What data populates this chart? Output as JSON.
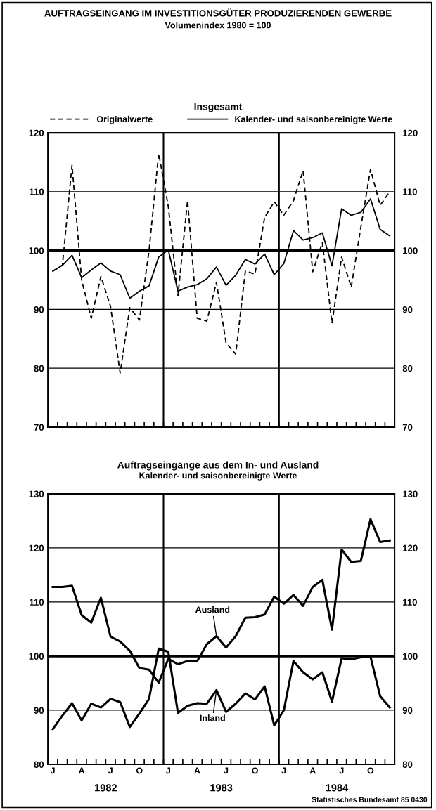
{
  "chart_data": [
    {
      "type": "line",
      "title": "AUFTRAGSEINGANG IM INVESTITIONSGÜTER PRODUZIERENDEN GEWERBE",
      "subtitle": "Volumenindex 1980 = 100",
      "annotations": [
        "Insgesamt"
      ],
      "categories": [
        null,
        null,
        null,
        null,
        null,
        null,
        null,
        null,
        null,
        null,
        null,
        null,
        null,
        null,
        null,
        null,
        null,
        null,
        null,
        null,
        null,
        null,
        null,
        null,
        null,
        null,
        null,
        null,
        null,
        null,
        null,
        null,
        null,
        null,
        null,
        null
      ],
      "series": [
        {
          "name": "Originalwerte",
          "color": "#000000",
          "line_style": "dashed",
          "values": [
            96.5,
            97.5,
            114.5,
            95.0,
            88.5,
            95.6,
            90.5,
            79.2,
            90.3,
            88.2,
            100.0,
            116.5,
            107.5,
            92.3,
            108.5,
            88.5,
            88.0,
            94.6,
            84.3,
            82.4,
            96.5,
            96.0,
            105.6,
            108.3,
            106.0,
            108.5,
            113.6,
            96.4,
            101.4,
            87.6,
            98.9,
            93.8,
            104.0,
            113.8,
            107.7,
            110.0
          ]
        },
        {
          "name": "Kalender- und saisonbereinigte Werte",
          "color": "#000000",
          "line_style": "solid",
          "values": [
            96.5,
            97.5,
            99.2,
            95.4,
            96.7,
            97.9,
            96.5,
            95.9,
            91.9,
            93.1,
            94.0,
            98.9,
            100.1,
            93.1,
            93.8,
            94.2,
            95.2,
            97.2,
            94.1,
            95.8,
            98.5,
            97.7,
            99.4,
            95.9,
            97.8,
            103.4,
            101.8,
            102.2,
            103.0,
            97.4,
            107.1,
            106.0,
            106.5,
            108.8,
            103.6,
            102.5
          ]
        }
      ],
      "ylim": [
        70,
        120
      ],
      "yticks": [
        70,
        80,
        90,
        100,
        110,
        120
      ],
      "y2lim": [
        70,
        120
      ],
      "y2ticks": [
        70,
        80,
        90,
        100,
        110,
        120
      ],
      "tick_labels": "y",
      "grid": "y",
      "legend": "top",
      "ref_lines": [
        {
          "axis": "y",
          "value": 100
        }
      ]
    },
    {
      "type": "line",
      "title": "Auftragseingänge aus dem In- und Ausland",
      "subtitle": "Kalender- und saisonbereinigte Werte",
      "annotations": [
        "1982",
        "1983",
        "1984",
        "Statistisches Bundesamt 85 0430"
      ],
      "categories": [
        "J",
        null,
        null,
        "A",
        null,
        null,
        "J",
        null,
        null,
        "O",
        null,
        null,
        "J",
        null,
        null,
        "A",
        null,
        null,
        "J",
        null,
        null,
        "O",
        null,
        null,
        "J",
        null,
        null,
        "A",
        null,
        null,
        "J",
        null,
        null,
        "O",
        null,
        null
      ],
      "series": [
        {
          "name": "Ausland",
          "color": "#000000",
          "values": [
            112.8,
            112.8,
            113.0,
            107.6,
            106.2,
            110.8,
            103.6,
            102.7,
            101.0,
            97.8,
            97.5,
            95.1,
            99.5,
            98.5,
            99.1,
            99.1,
            102.2,
            103.7,
            101.6,
            103.7,
            107.1,
            107.2,
            107.7,
            111.0,
            109.7,
            111.3,
            109.3,
            112.8,
            114.1,
            104.9,
            119.7,
            117.4,
            117.6,
            125.3,
            121.1,
            121.4
          ]
        },
        {
          "name": "Inland",
          "color": "#000000",
          "values": [
            86.5,
            89.0,
            91.3,
            88.1,
            91.2,
            90.5,
            92.1,
            91.5,
            86.9,
            89.4,
            92.1,
            101.4,
            100.8,
            89.5,
            90.8,
            91.3,
            91.2,
            93.7,
            89.7,
            91.2,
            93.1,
            92.0,
            94.4,
            87.2,
            90.0,
            99.1,
            97.0,
            95.7,
            97.0,
            91.6,
            99.6,
            99.4,
            99.8,
            99.9,
            92.6,
            90.5
          ]
        }
      ],
      "ylim": [
        80,
        130
      ],
      "yticks": [
        80,
        90,
        100,
        110,
        120,
        130
      ],
      "y2lim": [
        80,
        130
      ],
      "y2ticks": [
        80,
        90,
        100,
        110,
        120,
        130
      ],
      "grid": "y",
      "ref_lines": [
        {
          "axis": "y",
          "value": 100
        }
      ]
    }
  ]
}
